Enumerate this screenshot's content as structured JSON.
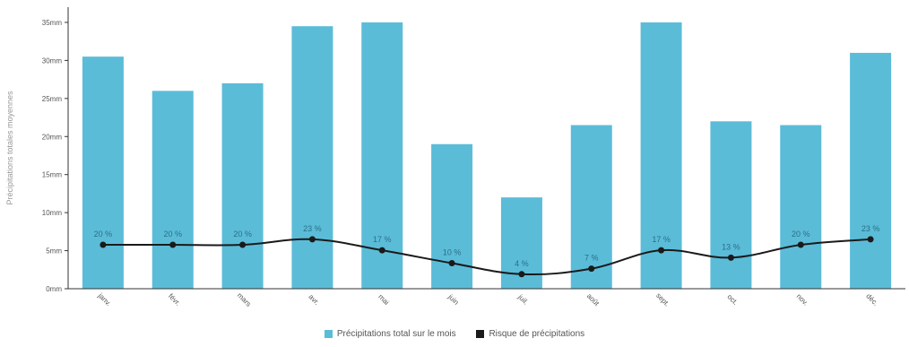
{
  "chart_data": {
    "type": "bar",
    "title": "",
    "ylabel": "Précipitations totales moyennes",
    "xlabel": "",
    "categories": [
      "janv.",
      "févr.",
      "mars",
      "avr.",
      "mai",
      "juin",
      "juil.",
      "août",
      "sept.",
      "oct.",
      "nov.",
      "déc."
    ],
    "y_ticks": [
      "0mm",
      "5mm",
      "10mm",
      "15mm",
      "20mm",
      "25mm",
      "30mm",
      "35mm"
    ],
    "ylim": [
      0,
      37
    ],
    "series": [
      {
        "name": "Précipitations total sur le mois",
        "type": "bar",
        "color": "#5bbcd8",
        "values": [
          30.5,
          26,
          27,
          34.5,
          35,
          19,
          12,
          21.5,
          35,
          22,
          21.5,
          31
        ]
      },
      {
        "name": "Risque de précipitations",
        "type": "line",
        "color": "#1a1a1a",
        "values": [
          20,
          20,
          20,
          23,
          17,
          10,
          4,
          7,
          17,
          13,
          20,
          23
        ],
        "labels": [
          "20 %",
          "20 %",
          "20 %",
          "23 %",
          "17 %",
          "10 %",
          "4 %",
          "7 %",
          "17 %",
          "13 %",
          "20 %",
          "23 %"
        ]
      }
    ],
    "legend_position": "bottom",
    "grid": false
  }
}
